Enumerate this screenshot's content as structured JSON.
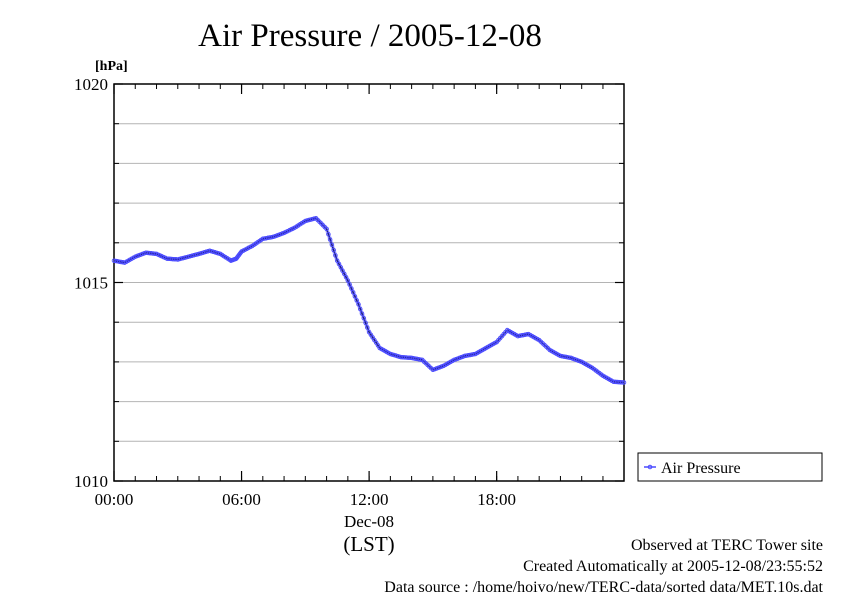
{
  "chart_data": {
    "type": "line",
    "title": "Air Pressure / 2005-12-08",
    "ylabel": "[hPa]",
    "x_axis": {
      "range_hours": [
        0,
        23.99
      ],
      "tick_labels": [
        "00:00",
        "06:00",
        "12:00",
        "18:00"
      ],
      "tick_hours": [
        0,
        6,
        12,
        18
      ],
      "date_label": "Dec-08",
      "unit_label": "(LST)"
    },
    "y_axis": {
      "range": [
        1010,
        1020
      ],
      "tick_labels": [
        "1010",
        "1015",
        "1020"
      ],
      "tick_values": [
        1010,
        1015,
        1020
      ],
      "grid_step": 1
    },
    "grid": true,
    "legend_placement": "right-bottom",
    "series": [
      {
        "name": "Air Pressure",
        "color": "#4b4bff",
        "points": [
          [
            0.0,
            1015.55
          ],
          [
            0.5,
            1015.5
          ],
          [
            1.0,
            1015.65
          ],
          [
            1.5,
            1015.75
          ],
          [
            2.0,
            1015.72
          ],
          [
            2.5,
            1015.6
          ],
          [
            3.0,
            1015.58
          ],
          [
            3.5,
            1015.65
          ],
          [
            4.0,
            1015.72
          ],
          [
            4.5,
            1015.8
          ],
          [
            5.0,
            1015.72
          ],
          [
            5.5,
            1015.55
          ],
          [
            5.75,
            1015.6
          ],
          [
            6.0,
            1015.78
          ],
          [
            6.5,
            1015.92
          ],
          [
            7.0,
            1016.1
          ],
          [
            7.5,
            1016.15
          ],
          [
            8.0,
            1016.25
          ],
          [
            8.5,
            1016.38
          ],
          [
            9.0,
            1016.55
          ],
          [
            9.5,
            1016.62
          ],
          [
            10.0,
            1016.35
          ],
          [
            10.5,
            1015.55
          ],
          [
            11.0,
            1015.05
          ],
          [
            11.5,
            1014.45
          ],
          [
            12.0,
            1013.75
          ],
          [
            12.5,
            1013.35
          ],
          [
            13.0,
            1013.2
          ],
          [
            13.5,
            1013.12
          ],
          [
            14.0,
            1013.1
          ],
          [
            14.5,
            1013.05
          ],
          [
            15.0,
            1012.8
          ],
          [
            15.5,
            1012.9
          ],
          [
            16.0,
            1013.05
          ],
          [
            16.5,
            1013.15
          ],
          [
            17.0,
            1013.2
          ],
          [
            17.5,
            1013.35
          ],
          [
            18.0,
            1013.5
          ],
          [
            18.5,
            1013.8
          ],
          [
            19.0,
            1013.65
          ],
          [
            19.5,
            1013.7
          ],
          [
            20.0,
            1013.55
          ],
          [
            20.5,
            1013.3
          ],
          [
            21.0,
            1013.15
          ],
          [
            21.5,
            1013.1
          ],
          [
            22.0,
            1013.0
          ],
          [
            22.5,
            1012.85
          ],
          [
            23.0,
            1012.65
          ],
          [
            23.5,
            1012.5
          ],
          [
            23.99,
            1012.48
          ]
        ]
      }
    ]
  },
  "footer": {
    "line1": "Observed at TERC Tower site",
    "line2": "Created Automatically at 2005-12-08/23:55:52",
    "line3": "Data source : /home/hoivo/new/TERC-data/sorted  data/MET.10s.dat"
  }
}
